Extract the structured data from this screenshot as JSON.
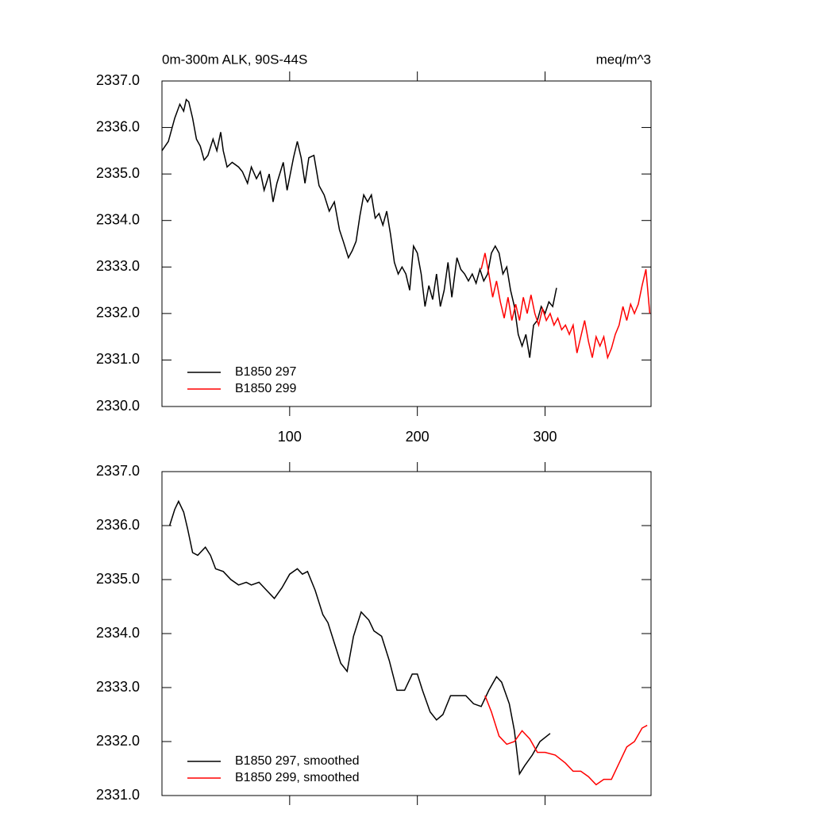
{
  "chart_data": [
    {
      "type": "line",
      "title": "0m-300m ALK, 90S-44S",
      "units": "meq/m^3",
      "xlim": [
        0,
        383
      ],
      "xticks": [
        100,
        200,
        300
      ],
      "ylim": [
        2330,
        2337
      ],
      "yticks": [
        {
          "value": 2330,
          "label": "2330.0"
        },
        {
          "value": 2331,
          "label": "2331.0"
        },
        {
          "value": 2332,
          "label": "2332.0"
        },
        {
          "value": 2333,
          "label": "2333.0"
        },
        {
          "value": 2334,
          "label": "2334.0"
        },
        {
          "value": 2335,
          "label": "2335.0"
        },
        {
          "value": 2336,
          "label": "2336.0"
        },
        {
          "value": 2337,
          "label": "2337.0"
        }
      ],
      "legend": "lower left",
      "series": [
        {
          "name": "B1850 297",
          "color": "#000000",
          "x": [
            0,
            5,
            10,
            14,
            17,
            19,
            21,
            24,
            27,
            30,
            33,
            36,
            40,
            43,
            46,
            48,
            51,
            55,
            60,
            63,
            67,
            70,
            74,
            77,
            80,
            84,
            87,
            90,
            95,
            98,
            103,
            106,
            109,
            112,
            115,
            119,
            123,
            127,
            131,
            135,
            139,
            142,
            146,
            149,
            152,
            155,
            158,
            161,
            164,
            167,
            170,
            173,
            176,
            179,
            182,
            185,
            188,
            191,
            194,
            197,
            200,
            203,
            206,
            209,
            212,
            215,
            218,
            221,
            224,
            227,
            231,
            234,
            237,
            240,
            243,
            246,
            249,
            252,
            255,
            258,
            261,
            264,
            267,
            270,
            273,
            276,
            279,
            282,
            285,
            288,
            291,
            294,
            297,
            300,
            303,
            306,
            309
          ],
          "values": [
            2335.5,
            2335.7,
            2336.2,
            2336.5,
            2336.35,
            2336.6,
            2336.55,
            2336.2,
            2335.75,
            2335.6,
            2335.3,
            2335.4,
            2335.75,
            2335.5,
            2335.9,
            2335.5,
            2335.15,
            2335.25,
            2335.15,
            2335.05,
            2334.8,
            2335.15,
            2334.9,
            2335.05,
            2334.65,
            2335.0,
            2334.4,
            2334.8,
            2335.25,
            2334.65,
            2335.35,
            2335.7,
            2335.35,
            2334.8,
            2335.35,
            2335.4,
            2334.75,
            2334.55,
            2334.2,
            2334.4,
            2333.8,
            2333.55,
            2333.2,
            2333.35,
            2333.55,
            2334.1,
            2334.55,
            2334.4,
            2334.55,
            2334.05,
            2334.15,
            2333.9,
            2334.2,
            2333.7,
            2333.1,
            2332.85,
            2333.0,
            2332.85,
            2332.5,
            2333.45,
            2333.3,
            2332.85,
            2332.15,
            2332.6,
            2332.3,
            2332.85,
            2332.15,
            2332.5,
            2333.1,
            2332.35,
            2333.2,
            2332.95,
            2332.85,
            2332.7,
            2332.85,
            2332.65,
            2332.95,
            2332.7,
            2332.85,
            2333.3,
            2333.45,
            2333.3,
            2332.85,
            2333.0,
            2332.5,
            2332.15,
            2331.55,
            2331.3,
            2331.55,
            2331.05,
            2331.75,
            2331.85,
            2332.15,
            2332.0,
            2332.25,
            2332.15,
            2332.55
          ]
        },
        {
          "name": "B1850 299",
          "color": "#ff0000",
          "x": [
            250,
            253,
            256,
            259,
            262,
            265,
            268,
            271,
            274,
            277,
            280,
            283,
            286,
            289,
            292,
            295,
            298,
            301,
            304,
            307,
            310,
            313,
            316,
            319,
            322,
            325,
            328,
            331,
            334,
            337,
            340,
            343,
            346,
            349,
            352,
            355,
            358,
            361,
            364,
            367,
            370,
            373,
            376,
            379,
            382
          ],
          "values": [
            2332.95,
            2333.3,
            2332.85,
            2332.35,
            2332.7,
            2332.25,
            2331.9,
            2332.35,
            2331.85,
            2332.2,
            2331.85,
            2332.35,
            2332.0,
            2332.4,
            2332.0,
            2331.75,
            2332.1,
            2331.85,
            2332.0,
            2331.75,
            2331.9,
            2331.65,
            2331.75,
            2331.55,
            2331.75,
            2331.15,
            2331.5,
            2331.85,
            2331.4,
            2331.05,
            2331.5,
            2331.3,
            2331.5,
            2331.05,
            2331.25,
            2331.55,
            2331.75,
            2332.15,
            2331.85,
            2332.2,
            2332.0,
            2332.2,
            2332.6,
            2332.95,
            2332.0
          ]
        }
      ]
    },
    {
      "type": "line",
      "xlim": [
        0,
        383
      ],
      "ylim": [
        2331,
        2337
      ],
      "yticks": [
        {
          "value": 2331,
          "label": "2331.0"
        },
        {
          "value": 2332,
          "label": "2332.0"
        },
        {
          "value": 2333,
          "label": "2333.0"
        },
        {
          "value": 2334,
          "label": "2334.0"
        },
        {
          "value": 2335,
          "label": "2335.0"
        },
        {
          "value": 2336,
          "label": "2336.0"
        },
        {
          "value": 2337,
          "label": "2337.0"
        }
      ],
      "legend": "lower left",
      "series": [
        {
          "name": "B1850 297, smoothed",
          "color": "#000000",
          "x": [
            6,
            10,
            13,
            17,
            20,
            24,
            28,
            34,
            38,
            42,
            48,
            54,
            60,
            66,
            70,
            76,
            82,
            88,
            94,
            100,
            106,
            110,
            114,
            120,
            126,
            130,
            136,
            140,
            145,
            150,
            156,
            162,
            166,
            172,
            178,
            184,
            190,
            196,
            200,
            204,
            210,
            215,
            220,
            226,
            232,
            238,
            244,
            250,
            256,
            262,
            266,
            272,
            276,
            280,
            284,
            290,
            296,
            304
          ],
          "values": [
            2336.0,
            2336.3,
            2336.45,
            2336.25,
            2335.95,
            2335.5,
            2335.45,
            2335.6,
            2335.45,
            2335.2,
            2335.15,
            2335.0,
            2334.9,
            2334.95,
            2334.9,
            2334.95,
            2334.8,
            2334.65,
            2334.85,
            2335.1,
            2335.2,
            2335.1,
            2335.15,
            2334.8,
            2334.35,
            2334.2,
            2333.75,
            2333.45,
            2333.3,
            2333.95,
            2334.4,
            2334.25,
            2334.05,
            2333.95,
            2333.5,
            2332.95,
            2332.95,
            2333.25,
            2333.25,
            2332.95,
            2332.55,
            2332.4,
            2332.5,
            2332.85,
            2332.85,
            2332.85,
            2332.7,
            2332.65,
            2332.95,
            2333.2,
            2333.1,
            2332.7,
            2332.2,
            2331.4,
            2331.55,
            2331.75,
            2332.0,
            2332.15
          ]
        },
        {
          "name": "B1850 299, smoothed",
          "color": "#ff0000",
          "x": [
            253,
            258,
            264,
            270,
            276,
            282,
            288,
            294,
            300,
            308,
            316,
            322,
            328,
            334,
            340,
            346,
            352,
            358,
            364,
            370,
            376,
            380
          ],
          "values": [
            2332.85,
            2332.55,
            2332.1,
            2331.95,
            2332.0,
            2332.2,
            2332.05,
            2331.8,
            2331.8,
            2331.75,
            2331.6,
            2331.45,
            2331.45,
            2331.35,
            2331.2,
            2331.3,
            2331.3,
            2331.6,
            2331.9,
            2332.0,
            2332.25,
            2332.3
          ]
        }
      ]
    }
  ]
}
